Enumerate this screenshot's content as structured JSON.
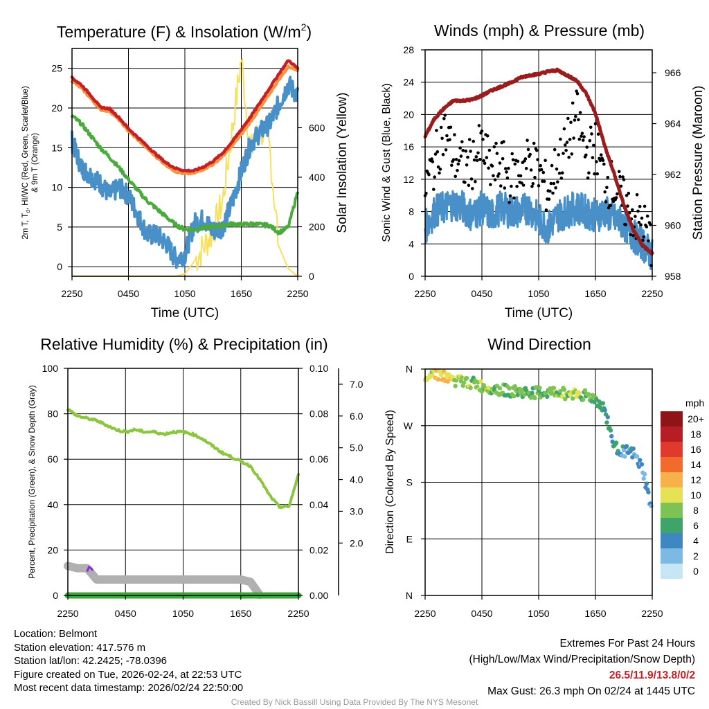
{
  "chart_data": [
    {
      "type": "line",
      "title": "Temperature (F) & Insolation (W/m²)",
      "title_main": "Temperature (F) & Insolation (W/m",
      "title_sup": "2",
      "title_end": ")",
      "xlabel": "Time (UTC)",
      "ylabel": "2m T, Td, HI/WC (Red, Green, Scarlet/Blue) & 9m T (Orange)",
      "ylabel_line1": "2m T, T",
      "ylabel_sub": "d",
      "ylabel_line1_end": ", HI/WC (Red, Green, Scarlet/Blue)",
      "ylabel_line2": "& 9m T (Orange)",
      "ylabel_right": "Solar Insolation (Yellow)",
      "xticks": [
        "2250",
        "0450",
        "1050",
        "1650",
        "2250"
      ],
      "yticks": [
        "0",
        "5",
        "10",
        "15",
        "20",
        "25"
      ],
      "yticks_right": [
        "0",
        "200",
        "400",
        "600"
      ],
      "ylim": [
        -1.2,
        27.5
      ],
      "ylim_right": [
        0,
        920
      ],
      "hours": [
        0,
        1,
        2,
        3,
        4,
        5,
        6,
        7,
        8,
        9,
        10,
        11,
        12,
        13,
        14,
        15,
        16,
        17,
        18,
        19,
        20,
        21,
        22,
        23,
        24
      ],
      "series": [
        {
          "name": "9m T",
          "color": "#f5923e",
          "values": [
            23.4,
            22.5,
            21.2,
            19.8,
            19.6,
            18.5,
            17.1,
            16.0,
            14.9,
            13.8,
            12.8,
            12.0,
            11.7,
            11.8,
            12.3,
            12.9,
            13.9,
            15.2,
            16.7,
            18.3,
            20.0,
            21.8,
            23.6,
            25.2,
            24.8
          ]
        },
        {
          "name": "2m T",
          "color": "#c42026",
          "values": [
            23.8,
            22.9,
            21.6,
            20.1,
            19.9,
            18.8,
            17.4,
            16.3,
            15.2,
            14.1,
            13.1,
            12.4,
            12.1,
            12.1,
            12.6,
            13.3,
            14.3,
            15.7,
            17.3,
            18.9,
            20.7,
            22.5,
            24.3,
            26.0,
            25.0
          ]
        },
        {
          "name": "Td",
          "color": "#4aaa3d",
          "values": [
            19.0,
            18.0,
            16.5,
            15.0,
            13.8,
            12.5,
            11.0,
            9.6,
            8.3,
            7.3,
            6.3,
            5.3,
            4.7,
            4.7,
            4.9,
            5.0,
            5.2,
            5.4,
            5.3,
            5.4,
            5.3,
            5.2,
            4.3,
            5.0,
            9.5
          ]
        },
        {
          "name": "HI/WC",
          "color": "#4a90c8",
          "values": [
            15.8,
            12.5,
            11.5,
            10.5,
            9.0,
            10.0,
            9.0,
            6.5,
            4.0,
            4.0,
            3.0,
            1.0,
            1.5,
            5.5,
            6.0,
            4.5,
            5.0,
            8.0,
            12.0,
            15.5,
            17.0,
            18.0,
            20.5,
            23.0,
            21.5
          ]
        },
        {
          "name": "Solar Insolation",
          "color": "#f6e05c",
          "axis": "right",
          "values": [
            0,
            0,
            0,
            0,
            0,
            0,
            0,
            0,
            0,
            0,
            0,
            0,
            10,
            60,
            120,
            180,
            300,
            580,
            880,
            500,
            600,
            520,
            120,
            30,
            0
          ]
        }
      ]
    },
    {
      "type": "line",
      "title": "Winds (mph) & Pressure (mb)",
      "xlabel": "Time (UTC)",
      "ylabel": "Sonic Wind & Gust (Blue, Black)",
      "ylabel_right": "Station Pressure (Maroon)",
      "xticks": [
        "2250",
        "0450",
        "1050",
        "1650",
        "2250"
      ],
      "yticks": [
        "0",
        "4",
        "8",
        "12",
        "16",
        "20",
        "24",
        "28"
      ],
      "yticks_right": [
        "958",
        "960",
        "962",
        "964",
        "966"
      ],
      "ylim": [
        0,
        28
      ],
      "ylim_right": [
        958,
        966.9
      ],
      "hours": [
        0,
        1,
        2,
        3,
        4,
        5,
        6,
        7,
        8,
        9,
        10,
        11,
        12,
        13,
        14,
        15,
        16,
        17,
        18,
        19,
        20,
        21,
        22,
        23,
        24
      ],
      "series": [
        {
          "name": "Sonic Wind",
          "color": "#4a90c8",
          "values": [
            6.0,
            8.0,
            8.5,
            9.0,
            8.5,
            7.5,
            8.5,
            7.5,
            8.5,
            8.0,
            8.0,
            8.5,
            7.0,
            6.0,
            7.5,
            8.0,
            8.5,
            8.0,
            7.5,
            8.0,
            7.0,
            6.5,
            5.0,
            4.0,
            2.5
          ]
        },
        {
          "name": "Gust",
          "color": "#000000",
          "values": [
            11.0,
            14.0,
            18.0,
            15.0,
            13.5,
            14.0,
            16.0,
            13.0,
            14.0,
            12.0,
            13.0,
            14.5,
            13.0,
            10.5,
            14.0,
            16.0,
            20.0,
            15.0,
            16.0,
            12.0,
            11.0,
            9.0,
            7.5,
            6.5,
            4.0
          ]
        },
        {
          "name": "Station Pressure",
          "color": "#9b1c1c",
          "axis": "right",
          "values": [
            963.5,
            964.2,
            964.6,
            964.9,
            964.9,
            964.95,
            965.1,
            965.3,
            965.45,
            965.6,
            965.8,
            965.9,
            965.95,
            966.05,
            966.1,
            965.9,
            965.7,
            965.2,
            964.4,
            963.1,
            962.0,
            960.8,
            959.8,
            959.2,
            958.9
          ]
        }
      ]
    },
    {
      "type": "line",
      "title": "Relative Humidity (%) & Precipitation (in)",
      "ylabel": "Percent, Precipitation (Green), & Snow Depth (Gray)",
      "xticks": [
        "2250",
        "0450",
        "1050",
        "1650",
        "2250"
      ],
      "yticks": [
        "0",
        "20",
        "40",
        "60",
        "80",
        "100"
      ],
      "yticks_right": [
        "0.00",
        "0.02",
        "0.04",
        "0.06",
        "0.08",
        "0.10"
      ],
      "yticks_far_right": [
        "2.0",
        "3.0",
        "4.0",
        "5.0",
        "6.0",
        "7.0"
      ],
      "ylim": [
        0,
        100
      ],
      "ylim_right": [
        0,
        0.1
      ],
      "ylim_far_right": [
        0.35,
        7.5
      ],
      "hours": [
        0,
        1,
        2,
        3,
        4,
        5,
        6,
        7,
        8,
        9,
        10,
        11,
        12,
        13,
        14,
        15,
        16,
        17,
        18,
        19,
        20,
        21,
        22,
        23,
        24
      ],
      "series": [
        {
          "name": "Relative Humidity",
          "color": "#8cc63f",
          "values": [
            82,
            79,
            78,
            77,
            75,
            73,
            72,
            73,
            72,
            72,
            71,
            72,
            72,
            71,
            69,
            66,
            63,
            61,
            59,
            57,
            51,
            44,
            39,
            39,
            53
          ]
        },
        {
          "name": "Precipitation",
          "color": "#3ca53a",
          "values": [
            0,
            0,
            0,
            0,
            0,
            0,
            0,
            0,
            0,
            0,
            0,
            0,
            0,
            0,
            0,
            0,
            0,
            0,
            0,
            0,
            0,
            0,
            0,
            0,
            0
          ]
        },
        {
          "name": "Snow Depth",
          "color": "#b0b0b0",
          "values": [
            13,
            12,
            12,
            7,
            7,
            7,
            7,
            7,
            7,
            7,
            7,
            7,
            7,
            7,
            7,
            7,
            7,
            7,
            7,
            6,
            0,
            0,
            0,
            0,
            0
          ]
        }
      ]
    },
    {
      "type": "scatter",
      "title": "Wind Direction",
      "ylabel": "Direction (Colored By Speed)",
      "xticks": [
        "2250",
        "0450",
        "1050",
        "1650",
        "2250"
      ],
      "yticks": [
        "N",
        "E",
        "S",
        "W",
        "N"
      ],
      "ylim": [
        0,
        360
      ],
      "legend_title": "mph",
      "legend_labels": [
        "0",
        "2",
        "4",
        "6",
        "8",
        "10",
        "12",
        "14",
        "16",
        "18",
        "20+"
      ],
      "legend_colors": [
        "#c7e6f5",
        "#7cb9e3",
        "#3f87c1",
        "#3fa46a",
        "#7cc353",
        "#e5e154",
        "#f8b14a",
        "#f26a2c",
        "#df3a2b",
        "#b71d25",
        "#8f1418"
      ],
      "hours": [
        0,
        1,
        2,
        3,
        4,
        5,
        6,
        7,
        8,
        9,
        10,
        11,
        12,
        13,
        14,
        15,
        16,
        17,
        18,
        19,
        20,
        21,
        22,
        23,
        24
      ],
      "direction_deg": [
        350,
        355,
        348,
        342,
        340,
        338,
        332,
        330,
        327,
        325,
        323,
        322,
        322,
        322,
        324,
        320,
        322,
        318,
        312,
        295,
        235,
        230,
        225,
        200,
        130
      ],
      "speed_mph": [
        9,
        10,
        12,
        9,
        9,
        8,
        8,
        8,
        7,
        7,
        7,
        7,
        7,
        7,
        8,
        8,
        9,
        7,
        7,
        6,
        5,
        4,
        4,
        3,
        2
      ]
    }
  ],
  "station": {
    "location": "Location: Belmont",
    "elevation": "Station elevation: 417.576 m",
    "latlon": "Station lat/lon: 42.2425; -78.0396",
    "created": "Figure created on Tue, 2026-02-24, at 22:53 UTC",
    "recent": "Most recent data timestamp: 2026/02/24 22:50:00"
  },
  "extremes": {
    "title": "Extremes For Past 24 Hours",
    "subtitle": "(High/Low/Max Wind/Precipitation/Snow Depth)",
    "values": "26.5/11.9/13.8/0/2",
    "gust": "Max Gust: 26.3 mph On 02/24 at 1445 UTC"
  },
  "credit": "Created By Nick Bassill Using Data Provided By The NYS Mesonet"
}
